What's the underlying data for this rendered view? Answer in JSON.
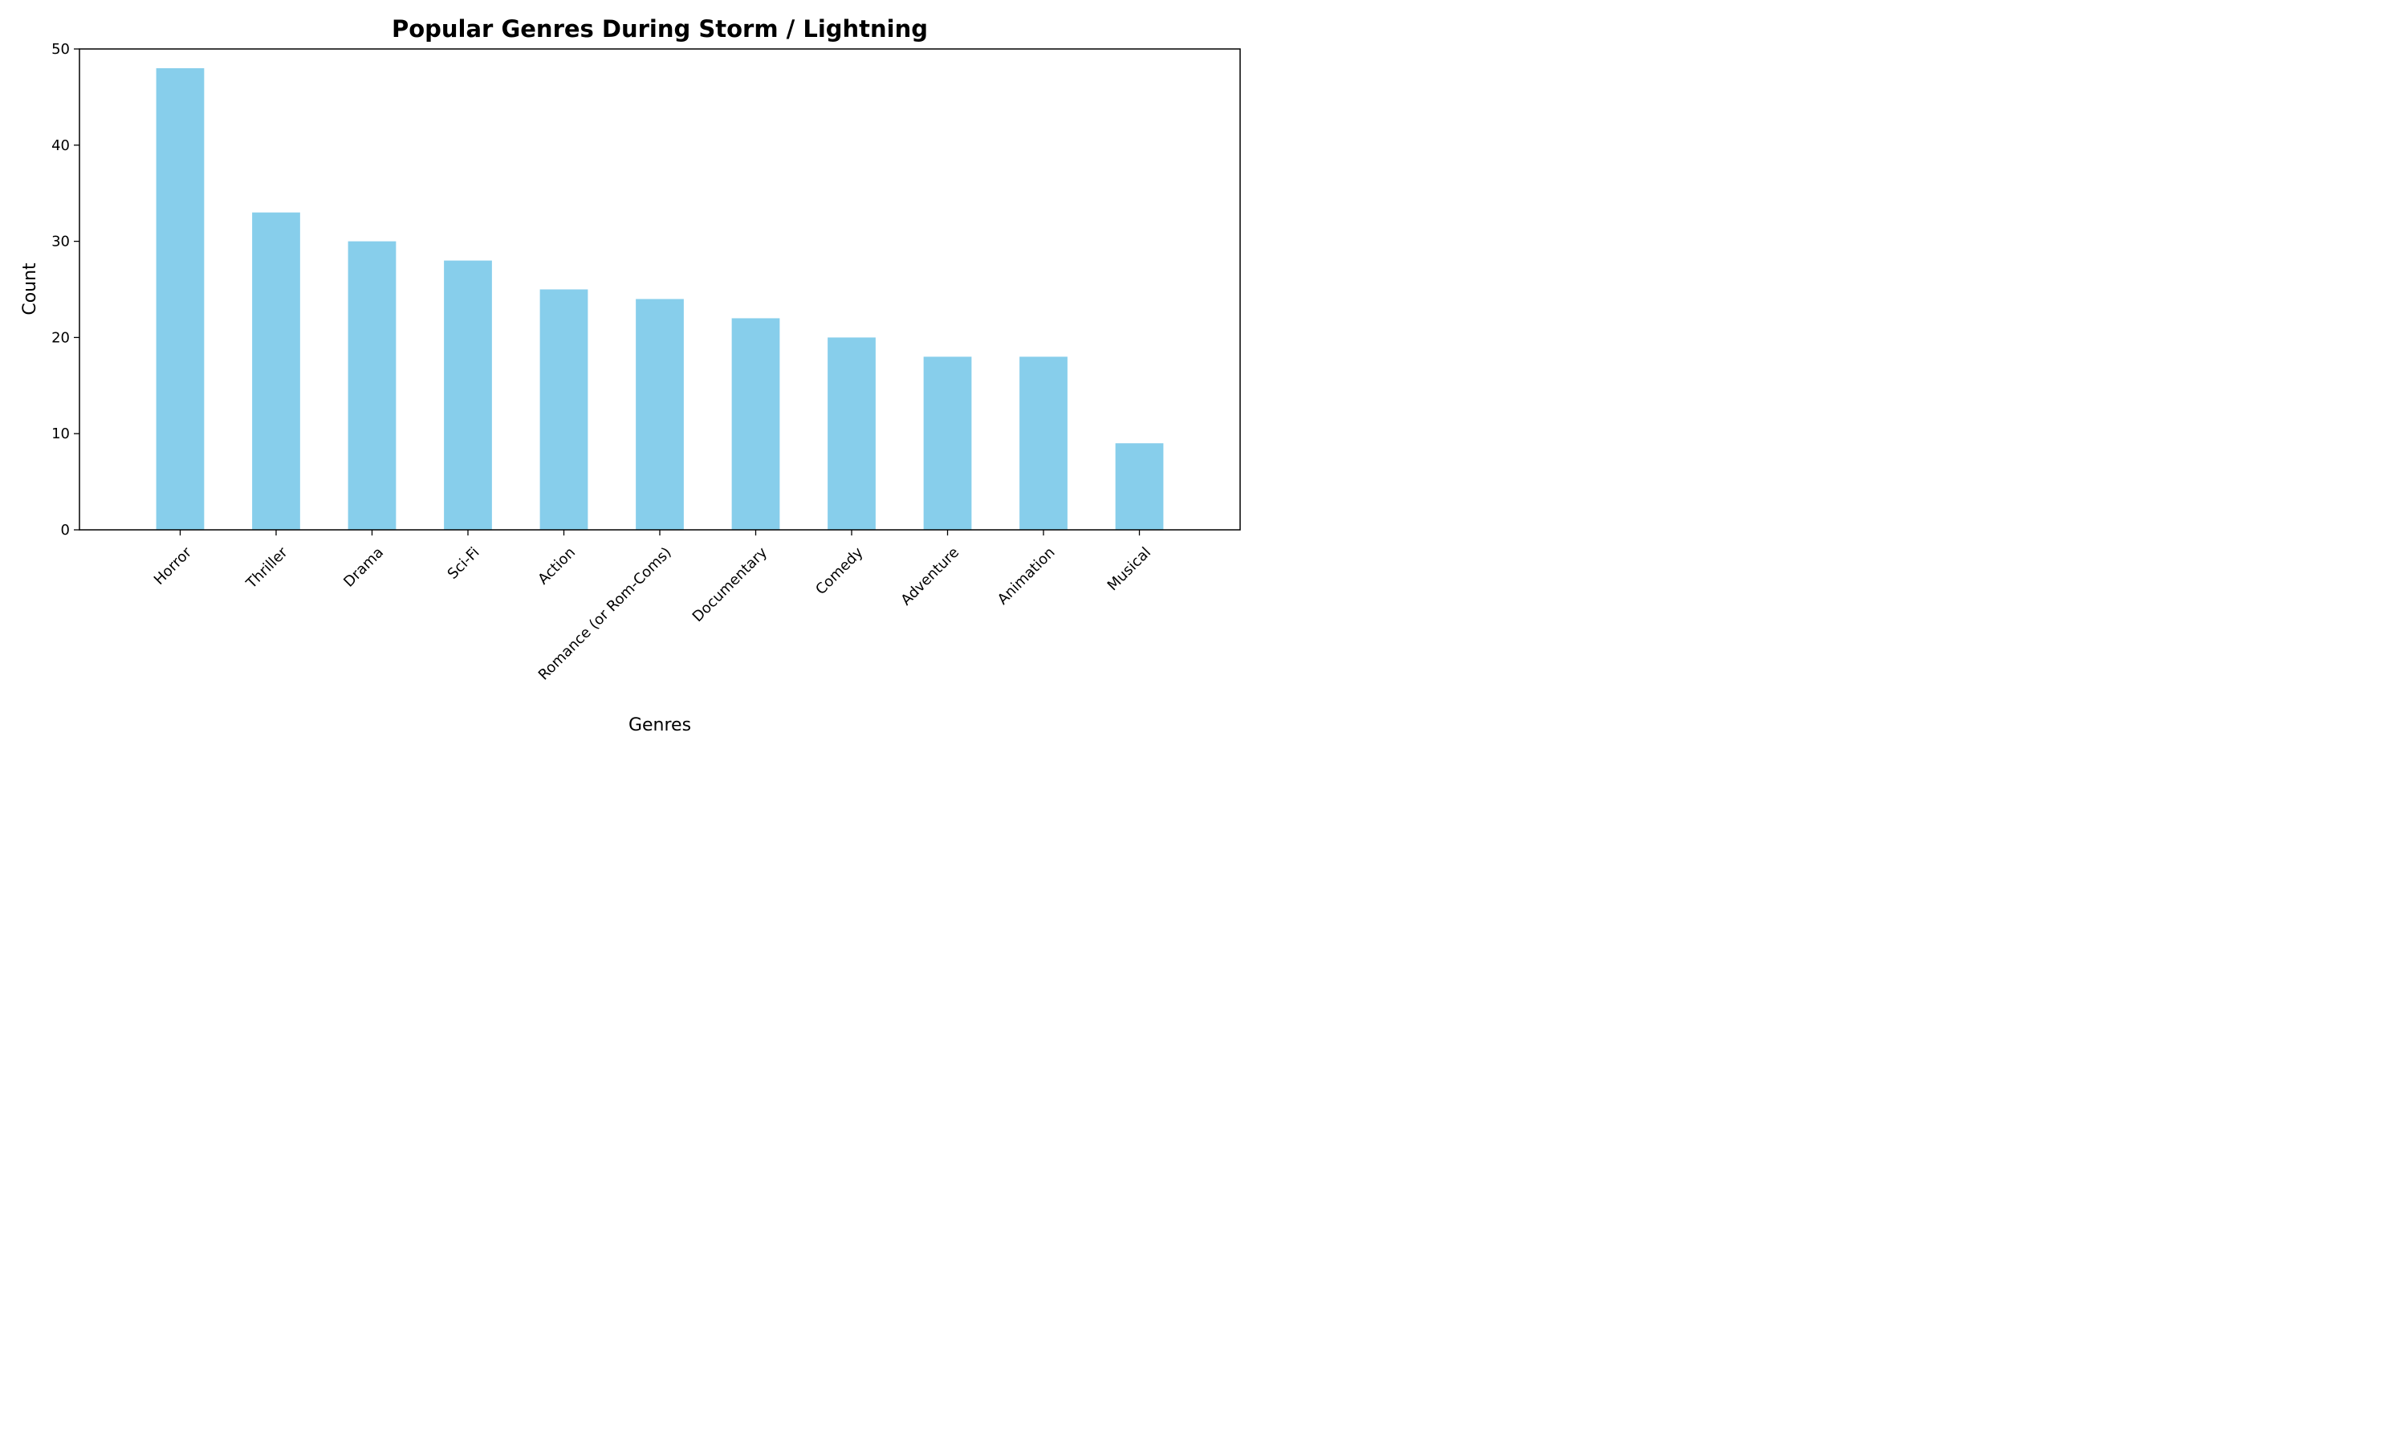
{
  "chart_data": {
    "type": "bar",
    "title": "Popular Genres During Storm / Lightning",
    "xlabel": "Genres",
    "ylabel": "Count",
    "categories": [
      "Horror",
      "Thriller",
      "Drama",
      "Sci-Fi",
      "Action",
      "Romance (or Rom-Coms)",
      "Documentary",
      "Comedy",
      "Adventure",
      "Animation",
      "Musical"
    ],
    "values": [
      48,
      33,
      30,
      28,
      25,
      24,
      22,
      20,
      18,
      18,
      9
    ],
    "ylim": [
      0,
      50
    ],
    "yticks": [
      0,
      10,
      20,
      30,
      40,
      50
    ],
    "bar_color": "#87ceeb",
    "grid": false,
    "legend": "none"
  }
}
